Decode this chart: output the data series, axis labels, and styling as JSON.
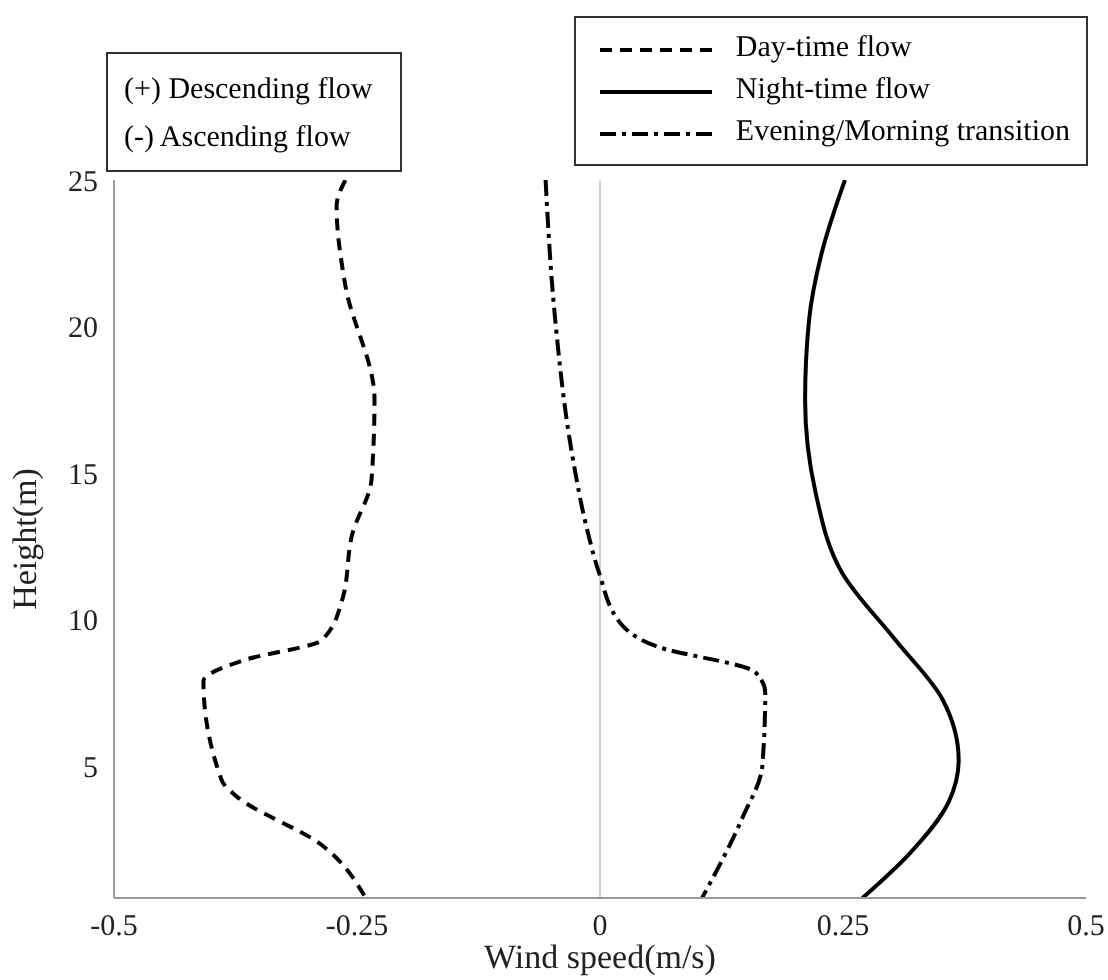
{
  "chart_data": {
    "type": "line",
    "xlabel": "Wind speed(m/s)",
    "ylabel": "Height(m)",
    "xlim": [
      -0.5,
      0.5
    ],
    "xticks": [
      -0.5,
      -0.25,
      0,
      0.25,
      0.5
    ],
    "ylim": [
      0.5,
      25
    ],
    "yticks": [
      5,
      10,
      15,
      20,
      25
    ],
    "grid": false,
    "legend": "top right",
    "marker": "none",
    "annotations": [
      "(+) Descending flow",
      "(-) Ascending flow"
    ],
    "ref_lines": [
      {
        "axis": "x",
        "value": 0,
        "color": "#d0d0d0"
      }
    ],
    "series": [
      {
        "name": "Day-time flow",
        "color": "#000000",
        "line_style": "dashed",
        "x": [
          -0.262,
          -0.271,
          -0.262,
          -0.232,
          -0.235,
          -0.255,
          -0.265,
          -0.286,
          -0.368,
          -0.408,
          -0.389,
          -0.375,
          -0.286,
          -0.241
        ],
        "values": [
          25,
          24.1,
          21.4,
          17.5,
          14.8,
          12.9,
          10.7,
          9.3,
          8.6,
          7.9,
          4.5,
          4.0,
          2.3,
          0.5
        ]
      },
      {
        "name": "Night-time flow",
        "color": "#000000",
        "line_style": "solid",
        "x": [
          0.252,
          0.228,
          0.215,
          0.211,
          0.222,
          0.249,
          0.304,
          0.352,
          0.369,
          0.359,
          0.318,
          0.27
        ],
        "values": [
          25,
          22.5,
          20.2,
          17.5,
          14.3,
          11.6,
          9.3,
          7.3,
          5.2,
          3.8,
          2.0,
          0.5
        ]
      },
      {
        "name": "Evening/Morning transition",
        "color": "#000000",
        "line_style": "dashdot",
        "x": [
          -0.056,
          -0.046,
          -0.029,
          -0.012,
          -0.001,
          0.023,
          0.057,
          0.16,
          0.17,
          0.167,
          0.146,
          0.105
        ],
        "values": [
          25,
          20.2,
          15.7,
          12.9,
          11.6,
          9.8,
          9.1,
          8.2,
          7.5,
          5.0,
          3.2,
          0.5
        ]
      }
    ]
  }
}
